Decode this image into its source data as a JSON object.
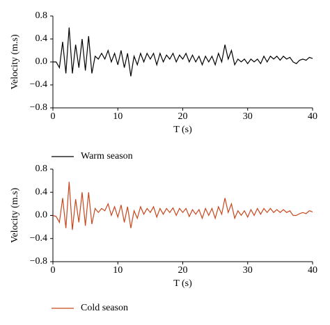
{
  "chart_data": [
    {
      "type": "line",
      "xlabel": "T (s)",
      "ylabel": "Velocity (m.s)",
      "xlim": [
        0,
        40
      ],
      "xticks": [
        0,
        10,
        20,
        30,
        40
      ],
      "ylim": [
        -0.8,
        0.8
      ],
      "yticks": [
        {
          "value": -0.8,
          "label": "−0.8"
        },
        {
          "value": -0.4,
          "label": "−0.4"
        },
        {
          "value": 0,
          "label": "0.0"
        },
        0.4,
        0.8
      ],
      "x": [
        0,
        0.5,
        1,
        1.5,
        2,
        2.5,
        3,
        3.5,
        4,
        4.5,
        5,
        5.5,
        6,
        6.5,
        7,
        7.5,
        8,
        8.5,
        9,
        9.5,
        10,
        10.5,
        11,
        11.5,
        12,
        12.5,
        13,
        13.5,
        14,
        14.5,
        15,
        15.5,
        16,
        16.5,
        17,
        17.5,
        18,
        18.5,
        19,
        19.5,
        20,
        20.5,
        21,
        21.5,
        22,
        22.5,
        23,
        23.5,
        24,
        24.5,
        25,
        25.5,
        26,
        26.5,
        27,
        27.5,
        28,
        28.5,
        29,
        29.5,
        30,
        30.5,
        31,
        31.5,
        32,
        32.5,
        33,
        33.5,
        34,
        34.5,
        35,
        35.5,
        36,
        36.5,
        37,
        37.5,
        38,
        38.5,
        39,
        39.5,
        40
      ],
      "series": [
        {
          "name": "Warm season",
          "color": "#000000",
          "values": [
            0,
            0.0,
            -0.1,
            0.35,
            -0.2,
            0.6,
            -0.2,
            0.3,
            -0.1,
            0.4,
            -0.15,
            0.45,
            -0.2,
            0.1,
            0.05,
            0.15,
            0.05,
            0.2,
            0.0,
            0.15,
            -0.05,
            0.2,
            -0.1,
            0.15,
            -0.25,
            0.1,
            -0.05,
            0.15,
            0.0,
            0.15,
            0.05,
            0.15,
            -0.05,
            0.15,
            0.0,
            0.12,
            0.05,
            0.15,
            0.0,
            0.12,
            0.05,
            0.15,
            0.0,
            0.12,
            0.0,
            0.1,
            -0.05,
            0.1,
            0.0,
            0.1,
            -0.05,
            0.15,
            0.0,
            0.3,
            0.05,
            0.2,
            -0.05,
            0.05,
            0.0,
            0.05,
            -0.03,
            0.05,
            0.0,
            0.05,
            -0.03,
            0.1,
            0.0,
            0.1,
            0.05,
            0.1,
            0.03,
            0.1,
            0.05,
            0.08,
            0.0,
            -0.03,
            0.03,
            0.05,
            0.03,
            0.08,
            0.06
          ]
        }
      ]
    },
    {
      "type": "line",
      "xlabel": "T (s)",
      "ylabel": "Velocity (m.s)",
      "xlim": [
        0,
        40
      ],
      "xticks": [
        0,
        10,
        20,
        30,
        40
      ],
      "ylim": [
        -0.8,
        0.8
      ],
      "yticks": [
        {
          "value": -0.8,
          "label": "−0.8"
        },
        {
          "value": -0.4,
          "label": "−0.4"
        },
        {
          "value": 0,
          "label": "0.0"
        },
        0.4,
        0.8
      ],
      "x": [
        0,
        0.5,
        1,
        1.5,
        2,
        2.5,
        3,
        3.5,
        4,
        4.5,
        5,
        5.5,
        6,
        6.5,
        7,
        7.5,
        8,
        8.5,
        9,
        9.5,
        10,
        10.5,
        11,
        11.5,
        12,
        12.5,
        13,
        13.5,
        14,
        14.5,
        15,
        15.5,
        16,
        16.5,
        17,
        17.5,
        18,
        18.5,
        19,
        19.5,
        20,
        20.5,
        21,
        21.5,
        22,
        22.5,
        23,
        23.5,
        24,
        24.5,
        25,
        25.5,
        26,
        26.5,
        27,
        27.5,
        28,
        28.5,
        29,
        29.5,
        30,
        30.5,
        31,
        31.5,
        32,
        32.5,
        33,
        33.5,
        34,
        34.5,
        35,
        35.5,
        36,
        36.5,
        37,
        37.5,
        38,
        38.5,
        39,
        39.5,
        40
      ],
      "series": [
        {
          "name": "Cold season",
          "color": "#c8471c",
          "values": [
            0,
            -0.02,
            -0.12,
            0.3,
            -0.22,
            0.58,
            -0.25,
            0.28,
            -0.12,
            0.4,
            -0.18,
            0.4,
            -0.15,
            0.12,
            0.05,
            0.12,
            0.08,
            0.2,
            0.0,
            0.15,
            -0.03,
            0.18,
            -0.12,
            0.15,
            -0.22,
            0.08,
            -0.05,
            0.15,
            0.02,
            0.12,
            0.05,
            0.15,
            -0.03,
            0.12,
            0.02,
            0.12,
            0.05,
            0.13,
            0.0,
            0.12,
            0.05,
            0.12,
            -0.02,
            0.1,
            0.02,
            0.1,
            -0.05,
            0.12,
            0.0,
            0.12,
            -0.05,
            0.15,
            0.02,
            0.3,
            0.05,
            0.2,
            -0.05,
            0.08,
            0.0,
            0.08,
            -0.03,
            0.1,
            0.0,
            0.12,
            0.02,
            0.12,
            0.05,
            0.12,
            0.05,
            0.1,
            0.05,
            0.1,
            0.05,
            0.08,
            0.0,
            0.0,
            0.03,
            0.05,
            0.03,
            0.08,
            0.06
          ]
        }
      ]
    }
  ]
}
